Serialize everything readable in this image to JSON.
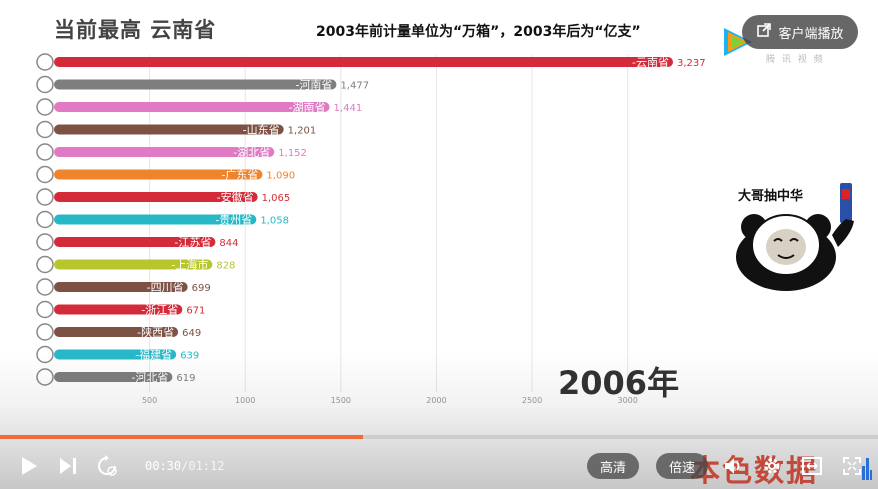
{
  "video": {
    "leader_title": "当前最高   云南省",
    "unit_note": "2003年前计量单位为“万箱”，2003年后为“亿支”",
    "year_label": "2006年",
    "meme_caption": "大哥抽中华",
    "watermark_top_right": "腾 讯 视 频",
    "watermark_bottom_right": "本色数据"
  },
  "overlay": {
    "client_button_label": "客户端播放",
    "client_button_icon": "external-open-icon",
    "logo_icon": "tencent-video-logo-icon"
  },
  "player": {
    "time_current": "00:30",
    "time_separator": "/",
    "time_total": "01:12",
    "progress_fraction": 0.414,
    "quality_label": "高清",
    "speed_label": "倍速",
    "accent_color": "#f06a3a",
    "icons": [
      "play-icon",
      "next-icon",
      "loop-icon",
      "volume-icon",
      "settings-icon",
      "theater-mode-icon",
      "fullscreen-icon"
    ]
  },
  "chart_data": {
    "type": "bar",
    "orientation": "horizontal",
    "categories": [
      "云南省",
      "河南省",
      "湖南省",
      "山东省",
      "湖北省",
      "广东省",
      "安徽省",
      "贵州省",
      "江苏省",
      "上海市",
      "四川省",
      "浙江省",
      "陕西省",
      "福建省",
      "河北省"
    ],
    "values": [
      3237,
      1477,
      1441,
      1201,
      1152,
      1090,
      1065,
      1058,
      844,
      828,
      699,
      671,
      649,
      639,
      619
    ],
    "value_labels": [
      "3,237",
      "1,477",
      "1,441",
      "1,201",
      "1,152",
      "1,090",
      "1,065",
      "1,058",
      "844",
      "828",
      "699",
      "671",
      "649",
      "639",
      "619"
    ],
    "colors": [
      "#d42b3a",
      "#7e7e7e",
      "#e07ac4",
      "#7e5145",
      "#e07ac4",
      "#f0842d",
      "#d42b3a",
      "#27b8c7",
      "#d42b3a",
      "#b8c62e",
      "#7e5145",
      "#d42b3a",
      "#7e5145",
      "#27b8c7",
      "#7e7e7e"
    ],
    "xlim": [
      0,
      3237
    ],
    "xticks": [
      500,
      1000,
      1500,
      2000,
      2500,
      3000
    ],
    "grid": true
  }
}
